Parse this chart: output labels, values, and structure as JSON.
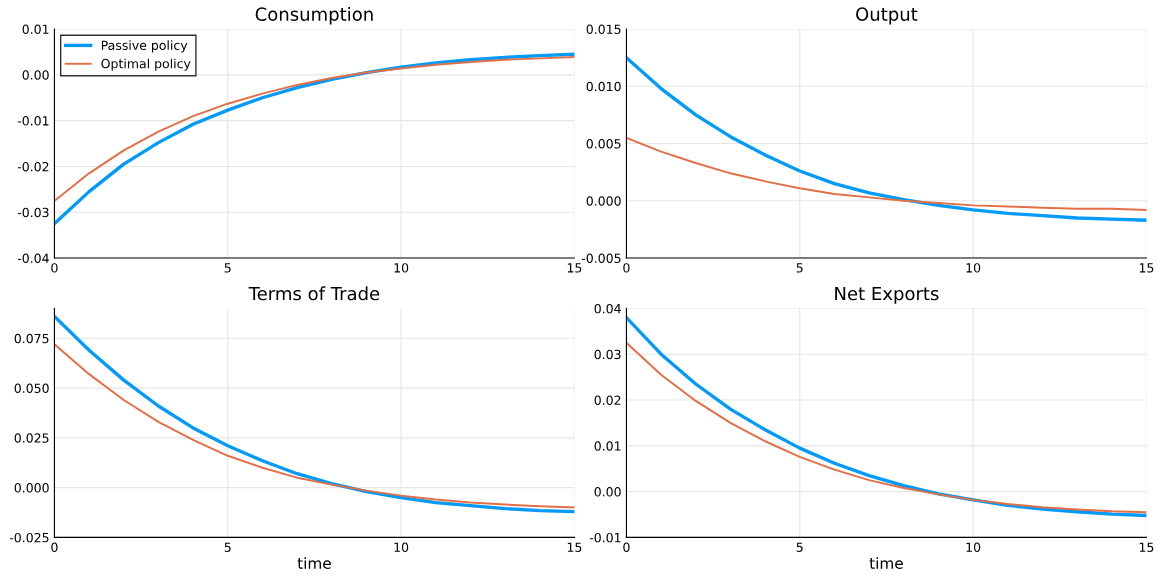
{
  "chart_data": [
    {
      "type": "line",
      "title": "Consumption",
      "x": [
        0,
        1,
        2,
        3,
        4,
        5,
        6,
        7,
        8,
        9,
        10,
        11,
        12,
        13,
        14,
        15
      ],
      "xlim": [
        0,
        15
      ],
      "xticks": [
        0,
        5,
        10,
        15
      ],
      "ylim": [
        -0.04,
        0.01
      ],
      "yticks": [
        {
          "value": -0.04,
          "label": "-0.04"
        },
        {
          "value": -0.03,
          "label": "-0.03"
        },
        {
          "value": -0.02,
          "label": "-0.02"
        },
        {
          "value": -0.01,
          "label": "-0.01"
        },
        {
          "value": 0,
          "label": "0.00"
        },
        {
          "value": 0.01,
          "label": "0.01"
        }
      ],
      "grid": true,
      "legend": "top left",
      "series": [
        {
          "name": "Passive policy",
          "color": "#009af9",
          "values": [
            -0.0325,
            -0.0255,
            -0.0195,
            -0.0148,
            -0.0108,
            -0.0077,
            -0.005,
            -0.0028,
            -0.001,
            0.0005,
            0.0017,
            0.0026,
            0.0033,
            0.0038,
            0.0042,
            0.0045
          ]
        },
        {
          "name": "Optimal policy",
          "color": "#e26f46",
          "values": [
            -0.0275,
            -0.0215,
            -0.0165,
            -0.0124,
            -0.009,
            -0.0063,
            -0.0041,
            -0.0022,
            -0.0007,
            0.0005,
            0.0014,
            0.0022,
            0.0028,
            0.0033,
            0.0036,
            0.0039
          ]
        }
      ]
    },
    {
      "type": "line",
      "title": "Output",
      "x": [
        0,
        1,
        2,
        3,
        4,
        5,
        6,
        7,
        8,
        9,
        10,
        11,
        12,
        13,
        14,
        15
      ],
      "xlim": [
        0,
        15
      ],
      "xticks": [
        0,
        5,
        10,
        15
      ],
      "ylim": [
        -0.005,
        0.015
      ],
      "yticks": [
        {
          "value": -0.005,
          "label": "-0.005"
        },
        {
          "value": 0,
          "label": "0.000"
        },
        {
          "value": 0.005,
          "label": "0.005"
        },
        {
          "value": 0.01,
          "label": "0.010"
        },
        {
          "value": 0.015,
          "label": "0.015"
        }
      ],
      "grid": true,
      "series": [
        {
          "color": "#009af9",
          "values": [
            0.0125,
            0.0098,
            0.0075,
            0.0056,
            0.004,
            0.0026,
            0.0015,
            0.0007,
            0.0001,
            -0.0004,
            -0.0008,
            -0.0011,
            -0.0013,
            -0.0015,
            -0.0016,
            -0.0017
          ]
        },
        {
          "color": "#e26f46",
          "values": [
            0.0055,
            0.0043,
            0.0033,
            0.0024,
            0.0017,
            0.0011,
            0.0006,
            0.0003,
            0.0,
            -0.0002,
            -0.0004,
            -0.0005,
            -0.0006,
            -0.0007,
            -0.0007,
            -0.0008
          ]
        }
      ]
    },
    {
      "type": "line",
      "title": "Terms of Trade",
      "xlabel": "time",
      "x": [
        0,
        1,
        2,
        3,
        4,
        5,
        6,
        7,
        8,
        9,
        10,
        11,
        12,
        13,
        14,
        15
      ],
      "xlim": [
        0,
        15
      ],
      "xticks": [
        0,
        5,
        10,
        15
      ],
      "ylim": [
        -0.025,
        0.09
      ],
      "yticks": [
        {
          "value": -0.025,
          "label": "-0.025"
        },
        {
          "value": 0,
          "label": "0.000"
        },
        {
          "value": 0.025,
          "label": "0.025"
        },
        {
          "value": 0.05,
          "label": "0.050"
        },
        {
          "value": 0.075,
          "label": "0.075"
        }
      ],
      "grid": true,
      "series": [
        {
          "color": "#009af9",
          "values": [
            0.086,
            0.069,
            0.054,
            0.041,
            0.03,
            0.021,
            0.0135,
            0.007,
            0.002,
            -0.002,
            -0.005,
            -0.0075,
            -0.009,
            -0.0105,
            -0.0115,
            -0.012
          ]
        },
        {
          "color": "#e26f46",
          "values": [
            0.072,
            0.057,
            0.044,
            0.033,
            0.024,
            0.016,
            0.01,
            0.005,
            0.0015,
            -0.0015,
            -0.004,
            -0.006,
            -0.0075,
            -0.0085,
            -0.0093,
            -0.01
          ]
        }
      ]
    },
    {
      "type": "line",
      "title": "Net Exports",
      "xlabel": "time",
      "x": [
        0,
        1,
        2,
        3,
        4,
        5,
        6,
        7,
        8,
        9,
        10,
        11,
        12,
        13,
        14,
        15
      ],
      "xlim": [
        0,
        15
      ],
      "xticks": [
        0,
        5,
        10,
        15
      ],
      "ylim": [
        -0.01,
        0.04
      ],
      "yticks": [
        {
          "value": -0.01,
          "label": "-0.01"
        },
        {
          "value": 0,
          "label": "0.00"
        },
        {
          "value": 0.01,
          "label": "0.01"
        },
        {
          "value": 0.02,
          "label": "0.02"
        },
        {
          "value": 0.03,
          "label": "0.03"
        },
        {
          "value": 0.04,
          "label": "0.04"
        }
      ],
      "grid": true,
      "series": [
        {
          "color": "#009af9",
          "values": [
            0.038,
            0.03,
            0.0235,
            0.018,
            0.0135,
            0.0095,
            0.0062,
            0.0035,
            0.0013,
            -0.0005,
            -0.0018,
            -0.003,
            -0.0038,
            -0.0044,
            -0.0049,
            -0.0052
          ]
        },
        {
          "color": "#e26f46",
          "values": [
            0.0325,
            0.0255,
            0.0198,
            0.015,
            0.011,
            0.0076,
            0.0048,
            0.0025,
            0.0008,
            -0.0006,
            -0.0018,
            -0.0027,
            -0.0034,
            -0.0039,
            -0.0043,
            -0.0045
          ]
        }
      ]
    }
  ]
}
